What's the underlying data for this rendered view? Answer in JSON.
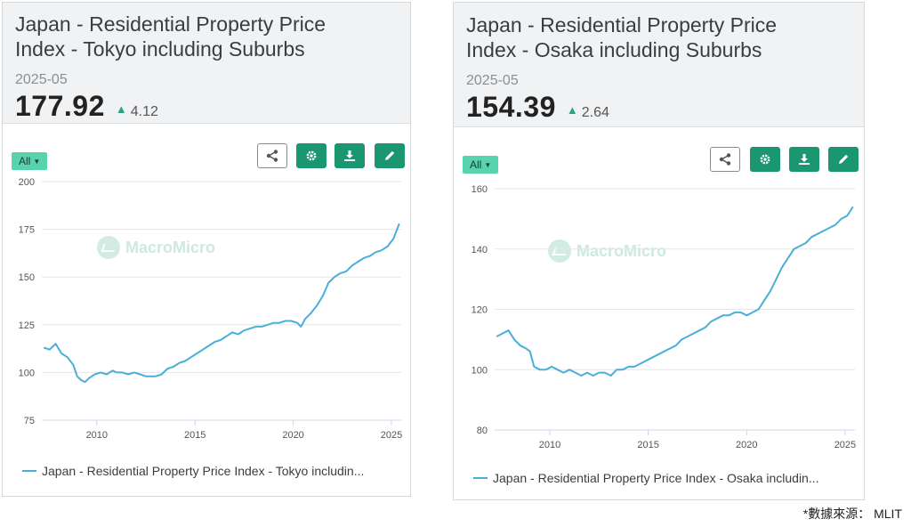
{
  "cards": [
    {
      "title_line1": "Japan - Residential Property Price",
      "title_line2": "Index - Tokyo including Suburbs",
      "date": "2025-05",
      "value": "177.92",
      "change": "4.12",
      "change_direction": "up",
      "range_label": "All",
      "watermark": "MacroMicro",
      "legend": "Japan - Residential Property Price Index - Tokyo includin...",
      "toolbar_icons": [
        "share-icon",
        "gear-icon",
        "download-icon",
        "edit-icon"
      ]
    },
    {
      "title_line1": "Japan - Residential Property Price",
      "title_line2": "Index - Osaka including Suburbs",
      "date": "2025-05",
      "value": "154.39",
      "change": "2.64",
      "change_direction": "up",
      "range_label": "All",
      "watermark": "MacroMicro",
      "legend": "Japan - Residential Property Price Index - Osaka includin...",
      "toolbar_icons": [
        "share-icon",
        "gear-icon",
        "download-icon",
        "edit-icon"
      ]
    }
  ],
  "source_note": "*數據來源： MLIT",
  "colors": {
    "line": "#4aafd8",
    "accent": "#1a9671",
    "range_button": "#57d3ad",
    "up": "#2aa37f"
  },
  "chart_data": [
    {
      "type": "line",
      "title": "Japan - Residential Property Price Index - Tokyo including Suburbs",
      "xlabel": "",
      "ylabel": "",
      "xlim": [
        2007.2,
        2025.5
      ],
      "ylim": [
        75,
        200
      ],
      "yticks": [
        200,
        175,
        150,
        125,
        100,
        75
      ],
      "xticks": [
        2010,
        2015,
        2020,
        2025
      ],
      "grid": true,
      "legend_position": "bottom",
      "series": [
        {
          "name": "Japan - Residential Property Price Index - Tokyo includin...",
          "x": [
            2007.3,
            2007.6,
            2007.9,
            2008.2,
            2008.5,
            2008.8,
            2009.0,
            2009.2,
            2009.4,
            2009.6,
            2009.9,
            2010.2,
            2010.5,
            2010.8,
            2011.0,
            2011.3,
            2011.6,
            2011.9,
            2012.2,
            2012.5,
            2012.8,
            2013.0,
            2013.3,
            2013.6,
            2013.9,
            2014.2,
            2014.5,
            2014.8,
            2015.1,
            2015.4,
            2015.7,
            2016.0,
            2016.3,
            2016.6,
            2016.9,
            2017.2,
            2017.5,
            2017.8,
            2018.1,
            2018.4,
            2018.7,
            2019.0,
            2019.3,
            2019.6,
            2019.9,
            2020.2,
            2020.4,
            2020.6,
            2020.9,
            2021.2,
            2021.5,
            2021.8,
            2022.1,
            2022.4,
            2022.7,
            2023.0,
            2023.3,
            2023.6,
            2023.9,
            2024.2,
            2024.5,
            2024.8,
            2025.1,
            2025.4
          ],
          "values": [
            113,
            112,
            115,
            110,
            108,
            104,
            98,
            96,
            95,
            97,
            99,
            100,
            99,
            101,
            100,
            100,
            99,
            100,
            99,
            98,
            98,
            98,
            99,
            102,
            103,
            105,
            106,
            108,
            110,
            112,
            114,
            116,
            117,
            119,
            121,
            120,
            122,
            123,
            124,
            124,
            125,
            126,
            126,
            127,
            127,
            126,
            124,
            128,
            131,
            135,
            140,
            147,
            150,
            152,
            153,
            156,
            158,
            160,
            161,
            163,
            164,
            166,
            170,
            178
          ]
        }
      ]
    },
    {
      "type": "line",
      "title": "Japan - Residential Property Price Index - Osaka including Suburbs",
      "xlabel": "",
      "ylabel": "",
      "xlim": [
        2007.2,
        2025.5
      ],
      "ylim": [
        80,
        160
      ],
      "yticks": [
        160,
        140,
        120,
        100,
        80
      ],
      "xticks": [
        2010,
        2015,
        2020,
        2025
      ],
      "grid": true,
      "legend_position": "bottom",
      "series": [
        {
          "name": "Japan - Residential Property Price Index - Osaka includin...",
          "x": [
            2007.3,
            2007.6,
            2007.9,
            2008.2,
            2008.5,
            2008.8,
            2009.0,
            2009.2,
            2009.5,
            2009.8,
            2010.1,
            2010.4,
            2010.7,
            2011.0,
            2011.3,
            2011.6,
            2011.9,
            2012.2,
            2012.5,
            2012.8,
            2013.1,
            2013.4,
            2013.7,
            2014.0,
            2014.3,
            2014.6,
            2014.9,
            2015.2,
            2015.5,
            2015.8,
            2016.1,
            2016.4,
            2016.7,
            2017.0,
            2017.3,
            2017.6,
            2017.9,
            2018.2,
            2018.5,
            2018.8,
            2019.1,
            2019.4,
            2019.7,
            2020.0,
            2020.3,
            2020.6,
            2020.9,
            2021.2,
            2021.5,
            2021.8,
            2022.1,
            2022.4,
            2022.7,
            2023.0,
            2023.3,
            2023.6,
            2023.9,
            2024.2,
            2024.5,
            2024.8,
            2025.1,
            2025.4
          ],
          "values": [
            111,
            112,
            113,
            110,
            108,
            107,
            106,
            101,
            100,
            100,
            101,
            100,
            99,
            100,
            99,
            98,
            99,
            98,
            99,
            99,
            98,
            100,
            100,
            101,
            101,
            102,
            103,
            104,
            105,
            106,
            107,
            108,
            110,
            111,
            112,
            113,
            114,
            116,
            117,
            118,
            118,
            119,
            119,
            118,
            119,
            120,
            123,
            126,
            130,
            134,
            137,
            140,
            141,
            142,
            144,
            145,
            146,
            147,
            148,
            150,
            151,
            154
          ]
        }
      ]
    }
  ]
}
